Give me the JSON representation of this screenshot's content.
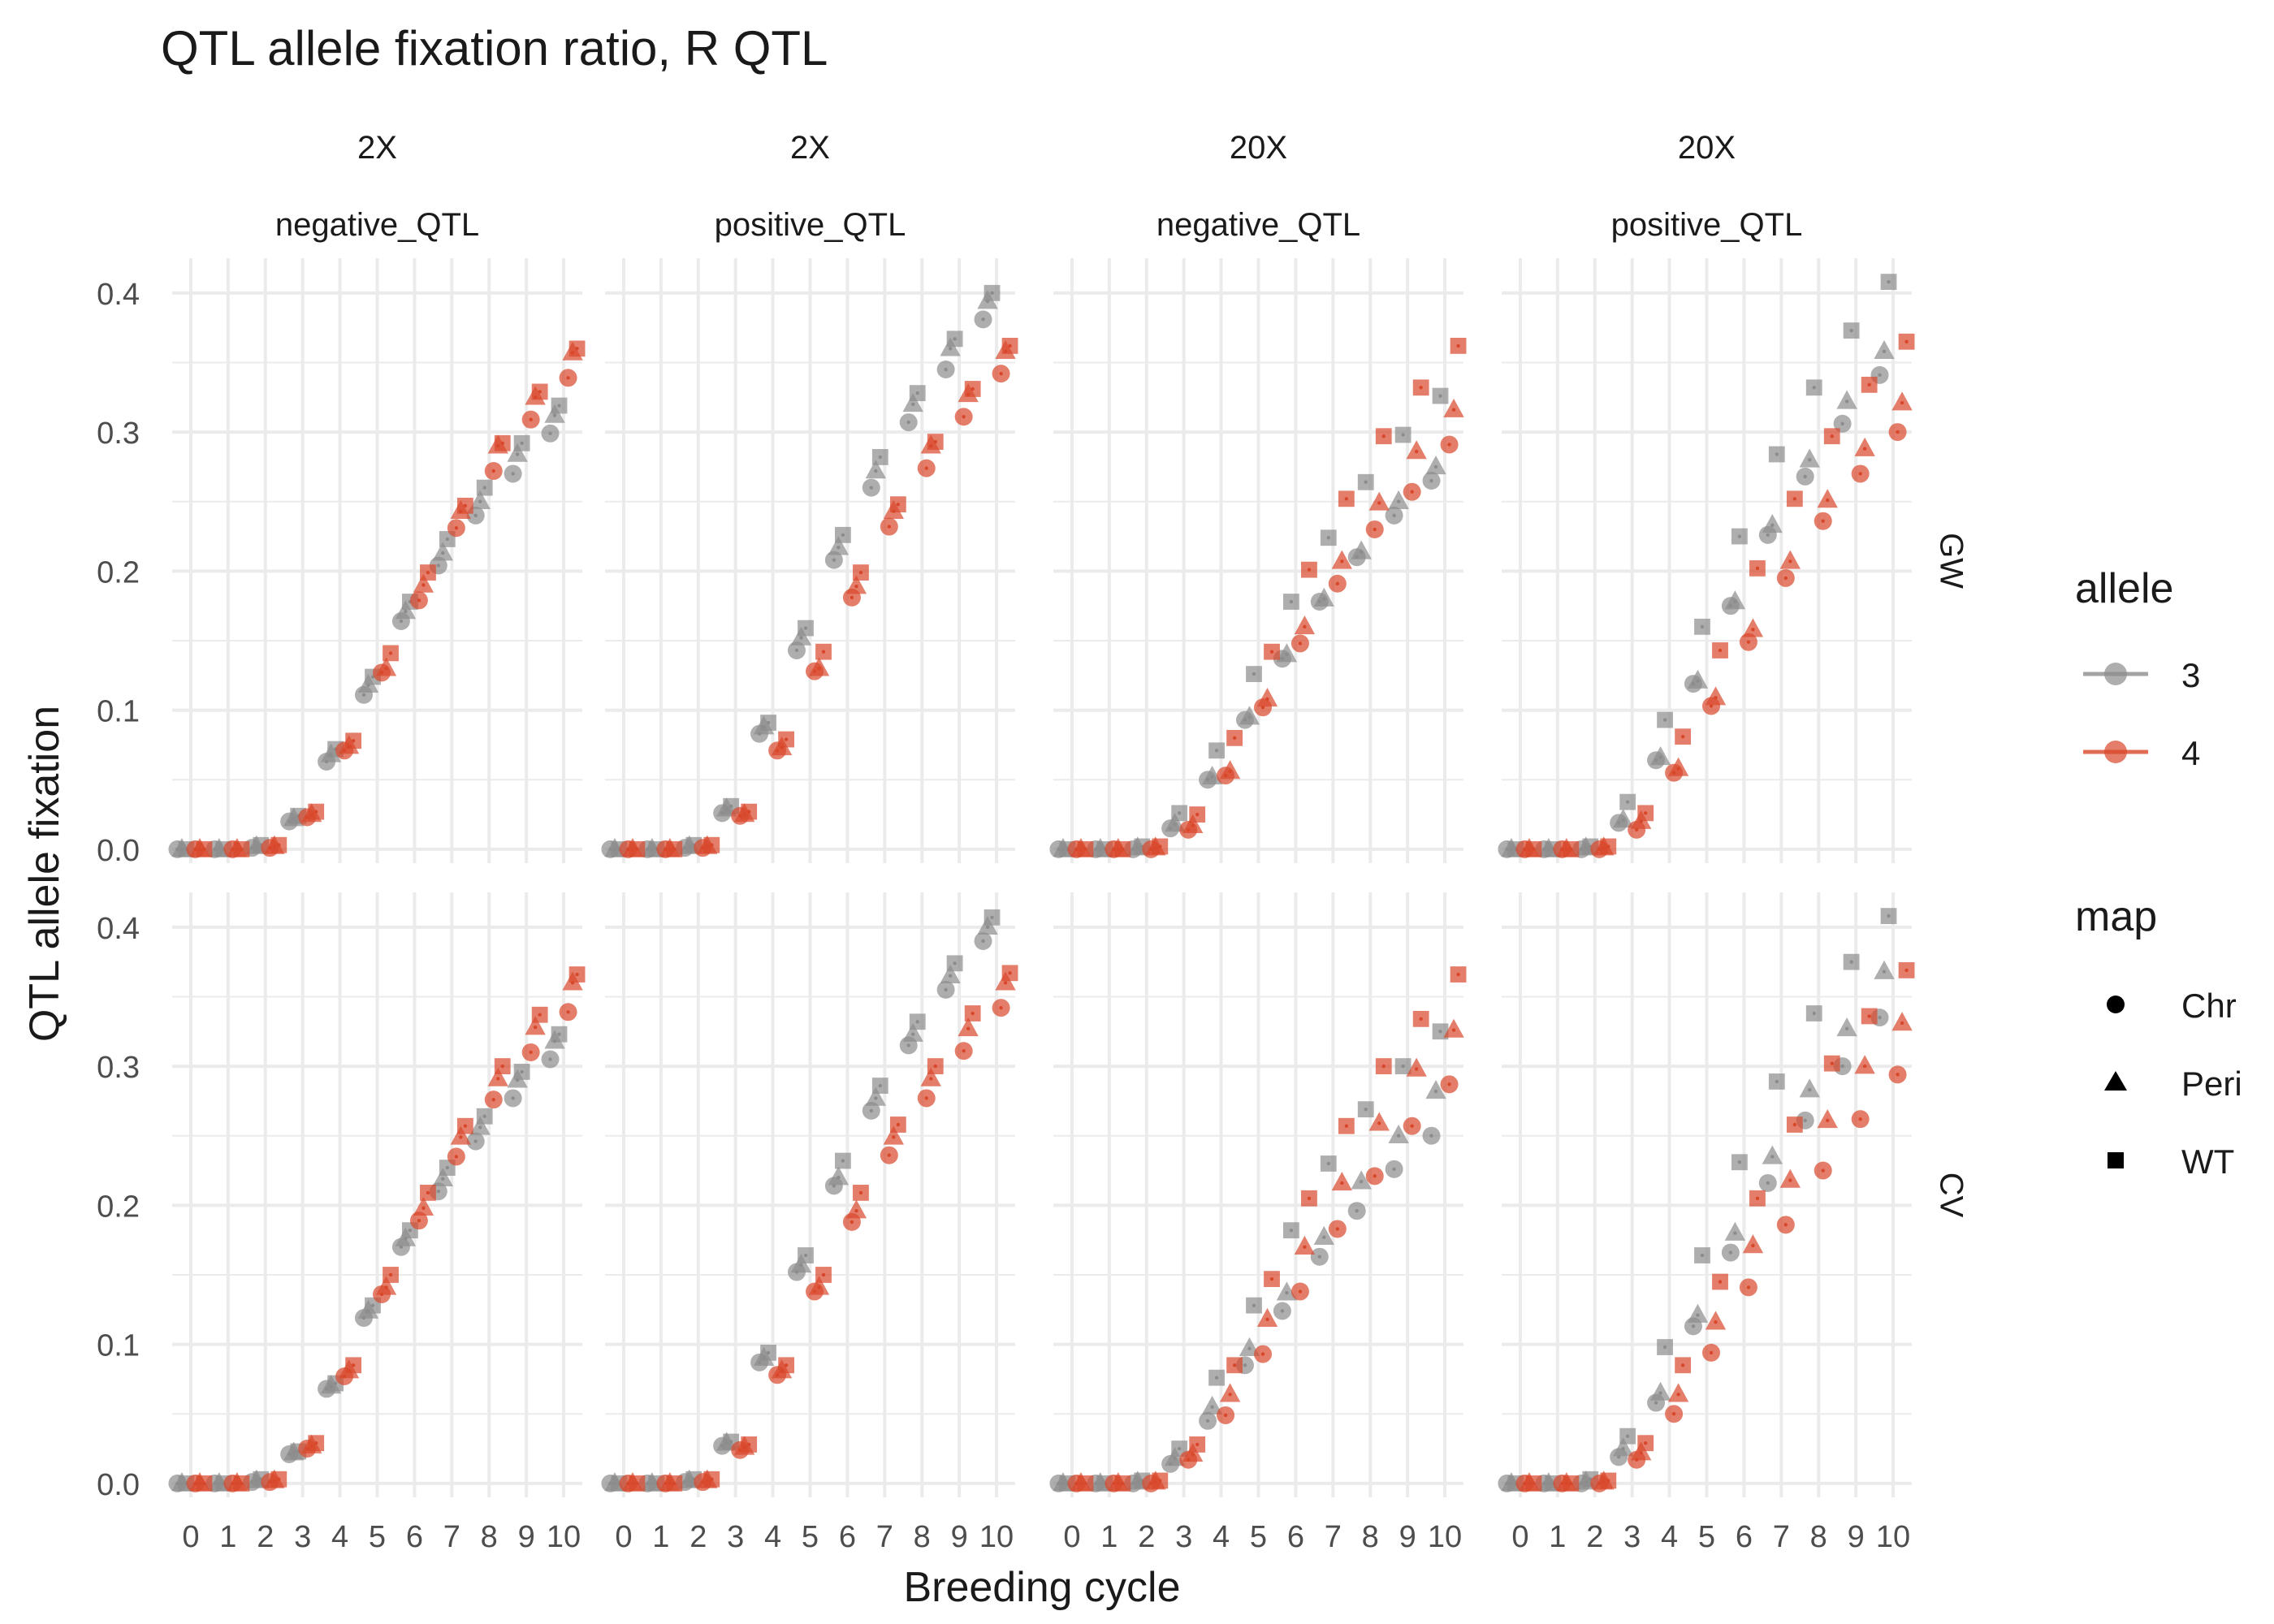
{
  "chart_data": {
    "type": "scatter",
    "title": "QTL allele fixation ratio, R QTL",
    "xlabel": "Breeding cycle",
    "ylabel": "QTL allele fixation",
    "x_ticks": [
      "0",
      "1",
      "2",
      "3",
      "4",
      "5",
      "6",
      "7",
      "8",
      "9",
      "10"
    ],
    "y_ticks": [
      "0.0",
      "0.1",
      "0.2",
      "0.3",
      "0.4"
    ],
    "xlim": [
      -0.5,
      10.5
    ],
    "ylim": [
      -0.01,
      0.425
    ],
    "grid": true,
    "legend_position": "right",
    "facet_columns": [
      {
        "top": "2X",
        "bottom": "negative_QTL"
      },
      {
        "top": "2X",
        "bottom": "positive_QTL"
      },
      {
        "top": "20X",
        "bottom": "negative_QTL"
      },
      {
        "top": "20X",
        "bottom": "positive_QTL"
      }
    ],
    "facet_rows": [
      "GW",
      "CV"
    ],
    "legend_allele": {
      "title": "allele",
      "entries": [
        {
          "label": "3",
          "color": "#8c8c8c"
        },
        {
          "label": "4",
          "color": "#d9472b"
        }
      ]
    },
    "legend_map": {
      "title": "map",
      "entries": [
        {
          "label": "Chr",
          "shape": "circle"
        },
        {
          "label": "Peri",
          "shape": "triangle"
        },
        {
          "label": "WT",
          "shape": "square"
        }
      ]
    },
    "allele_colors": {
      "3": "#8c8c8c",
      "4": "#d9472b"
    },
    "panels": [
      {
        "row": 0,
        "col": 0,
        "values": {
          "3": {
            "Chr": [
              0,
              0,
              0.001,
              0.02,
              0.063,
              0.111,
              0.164,
              0.204,
              0.24,
              0.27,
              0.299
            ],
            "Peri": [
              0,
              0,
              0.002,
              0.022,
              0.068,
              0.118,
              0.171,
              0.213,
              0.25,
              0.284,
              0.312
            ],
            "WT": [
              0,
              0,
              0.003,
              0.024,
              0.072,
              0.124,
              0.178,
              0.223,
              0.26,
              0.292,
              0.319
            ]
          },
          "4": {
            "Chr": [
              0,
              0,
              0.001,
              0.023,
              0.071,
              0.127,
              0.179,
              0.231,
              0.272,
              0.309,
              0.339
            ],
            "Peri": [
              0,
              0,
              0.002,
              0.025,
              0.074,
              0.13,
              0.19,
              0.243,
              0.29,
              0.325,
              0.357
            ],
            "WT": [
              0,
              0,
              0.003,
              0.027,
              0.078,
              0.141,
              0.199,
              0.247,
              0.292,
              0.329,
              0.36
            ]
          }
        }
      },
      {
        "row": 0,
        "col": 1,
        "values": {
          "3": {
            "Chr": [
              0,
              0,
              0.001,
              0.026,
              0.083,
              0.143,
              0.208,
              0.26,
              0.307,
              0.345,
              0.381
            ],
            "Peri": [
              0,
              0,
              0.002,
              0.029,
              0.088,
              0.152,
              0.217,
              0.272,
              0.32,
              0.36,
              0.394
            ],
            "WT": [
              0,
              0,
              0.003,
              0.031,
              0.091,
              0.159,
              0.226,
              0.282,
              0.328,
              0.367,
              0.4
            ]
          },
          "4": {
            "Chr": [
              0,
              0,
              0.001,
              0.024,
              0.071,
              0.128,
              0.181,
              0.232,
              0.274,
              0.311,
              0.342
            ],
            "Peri": [
              0,
              0,
              0.002,
              0.025,
              0.073,
              0.13,
              0.189,
              0.243,
              0.29,
              0.327,
              0.358
            ],
            "WT": [
              0,
              0,
              0.003,
              0.027,
              0.079,
              0.142,
              0.199,
              0.248,
              0.293,
              0.331,
              0.362
            ]
          }
        }
      },
      {
        "row": 0,
        "col": 2,
        "values": {
          "3": {
            "Chr": [
              0,
              0,
              0,
              0.015,
              0.05,
              0.093,
              0.137,
              0.178,
              0.21,
              0.24,
              0.265
            ],
            "Peri": [
              0,
              0,
              0.001,
              0.018,
              0.052,
              0.095,
              0.14,
              0.18,
              0.214,
              0.25,
              0.275
            ],
            "WT": [
              0,
              0,
              0.002,
              0.026,
              0.071,
              0.126,
              0.178,
              0.224,
              0.264,
              0.298,
              0.326
            ]
          },
          "4": {
            "Chr": [
              0,
              0,
              0,
              0.014,
              0.053,
              0.102,
              0.148,
              0.191,
              0.23,
              0.257,
              0.291
            ],
            "Peri": [
              0,
              0,
              0.001,
              0.017,
              0.056,
              0.108,
              0.16,
              0.207,
              0.249,
              0.286,
              0.316
            ],
            "WT": [
              0,
              0,
              0.002,
              0.025,
              0.08,
              0.142,
              0.201,
              0.252,
              0.297,
              0.332,
              0.362
            ]
          }
        }
      },
      {
        "row": 0,
        "col": 3,
        "values": {
          "3": {
            "Chr": [
              0,
              0,
              0,
              0.019,
              0.064,
              0.119,
              0.175,
              0.226,
              0.268,
              0.306,
              0.341
            ],
            "Peri": [
              0,
              0,
              0.001,
              0.021,
              0.066,
              0.121,
              0.178,
              0.233,
              0.28,
              0.322,
              0.358
            ],
            "WT": [
              0,
              0,
              0.002,
              0.034,
              0.093,
              0.16,
              0.225,
              0.284,
              0.332,
              0.373,
              0.408
            ]
          },
          "4": {
            "Chr": [
              0,
              0,
              0,
              0.014,
              0.055,
              0.103,
              0.149,
              0.195,
              0.236,
              0.27,
              0.3
            ],
            "Peri": [
              0,
              0,
              0.001,
              0.02,
              0.058,
              0.109,
              0.158,
              0.207,
              0.251,
              0.288,
              0.321
            ],
            "WT": [
              0,
              0,
              0.002,
              0.026,
              0.081,
              0.143,
              0.202,
              0.252,
              0.297,
              0.334,
              0.365
            ]
          }
        }
      },
      {
        "row": 1,
        "col": 0,
        "values": {
          "3": {
            "Chr": [
              0,
              0,
              0.001,
              0.021,
              0.068,
              0.119,
              0.17,
              0.21,
              0.246,
              0.277,
              0.305
            ],
            "Peri": [
              0,
              0,
              0.002,
              0.022,
              0.07,
              0.124,
              0.176,
              0.219,
              0.256,
              0.29,
              0.318
            ],
            "WT": [
              0,
              0,
              0.003,
              0.023,
              0.072,
              0.128,
              0.182,
              0.227,
              0.264,
              0.296,
              0.323
            ]
          },
          "4": {
            "Chr": [
              0,
              0,
              0.001,
              0.025,
              0.077,
              0.136,
              0.189,
              0.235,
              0.276,
              0.31,
              0.339
            ],
            "Peri": [
              0,
              0,
              0.002,
              0.027,
              0.081,
              0.141,
              0.198,
              0.249,
              0.291,
              0.328,
              0.36
            ],
            "WT": [
              0,
              0,
              0.003,
              0.029,
              0.085,
              0.15,
              0.209,
              0.257,
              0.3,
              0.337,
              0.366
            ]
          }
        }
      },
      {
        "row": 1,
        "col": 1,
        "values": {
          "3": {
            "Chr": [
              0,
              0,
              0.001,
              0.027,
              0.087,
              0.152,
              0.214,
              0.268,
              0.315,
              0.355,
              0.39
            ],
            "Peri": [
              0,
              0,
              0.002,
              0.029,
              0.09,
              0.157,
              0.22,
              0.277,
              0.323,
              0.365,
              0.4
            ],
            "WT": [
              0,
              0,
              0.003,
              0.03,
              0.094,
              0.164,
              0.232,
              0.286,
              0.332,
              0.374,
              0.407
            ]
          },
          "4": {
            "Chr": [
              0,
              0,
              0.001,
              0.024,
              0.078,
              0.138,
              0.188,
              0.236,
              0.277,
              0.311,
              0.342
            ],
            "Peri": [
              0,
              0,
              0.002,
              0.026,
              0.081,
              0.141,
              0.196,
              0.249,
              0.291,
              0.327,
              0.36
            ],
            "WT": [
              0,
              0,
              0.003,
              0.028,
              0.085,
              0.15,
              0.209,
              0.258,
              0.3,
              0.338,
              0.367
            ]
          }
        }
      },
      {
        "row": 1,
        "col": 2,
        "values": {
          "3": {
            "Chr": [
              0,
              0,
              0,
              0.014,
              0.045,
              0.085,
              0.124,
              0.163,
              0.196,
              0.226,
              0.25
            ],
            "Peri": [
              0,
              0,
              0.001,
              0.018,
              0.055,
              0.097,
              0.137,
              0.177,
              0.217,
              0.25,
              0.282
            ],
            "WT": [
              0,
              0,
              0.002,
              0.025,
              0.076,
              0.128,
              0.182,
              0.23,
              0.269,
              0.3,
              0.325
            ]
          },
          "4": {
            "Chr": [
              0,
              0,
              0,
              0.017,
              0.049,
              0.093,
              0.138,
              0.183,
              0.221,
              0.257,
              0.287
            ],
            "Peri": [
              0,
              0,
              0.001,
              0.021,
              0.064,
              0.118,
              0.17,
              0.216,
              0.259,
              0.298,
              0.326
            ],
            "WT": [
              0,
              0,
              0.002,
              0.028,
              0.085,
              0.147,
              0.205,
              0.257,
              0.3,
              0.334,
              0.366
            ]
          }
        }
      },
      {
        "row": 1,
        "col": 3,
        "values": {
          "3": {
            "Chr": [
              0,
              0,
              0,
              0.019,
              0.058,
              0.113,
              0.166,
              0.216,
              0.261,
              0.3,
              0.335
            ],
            "Peri": [
              0,
              0,
              0.001,
              0.025,
              0.065,
              0.121,
              0.18,
              0.235,
              0.283,
              0.327,
              0.368
            ],
            "WT": [
              0,
              0,
              0.003,
              0.034,
              0.098,
              0.164,
              0.231,
              0.289,
              0.338,
              0.375,
              0.408
            ]
          },
          "4": {
            "Chr": [
              0,
              0,
              0,
              0.017,
              0.05,
              0.094,
              0.141,
              0.186,
              0.225,
              0.262,
              0.294
            ],
            "Peri": [
              0,
              0,
              0.001,
              0.022,
              0.064,
              0.116,
              0.171,
              0.218,
              0.261,
              0.3,
              0.331
            ],
            "WT": [
              0,
              0,
              0.002,
              0.029,
              0.085,
              0.145,
              0.205,
              0.258,
              0.302,
              0.336,
              0.369
            ]
          }
        }
      }
    ]
  }
}
